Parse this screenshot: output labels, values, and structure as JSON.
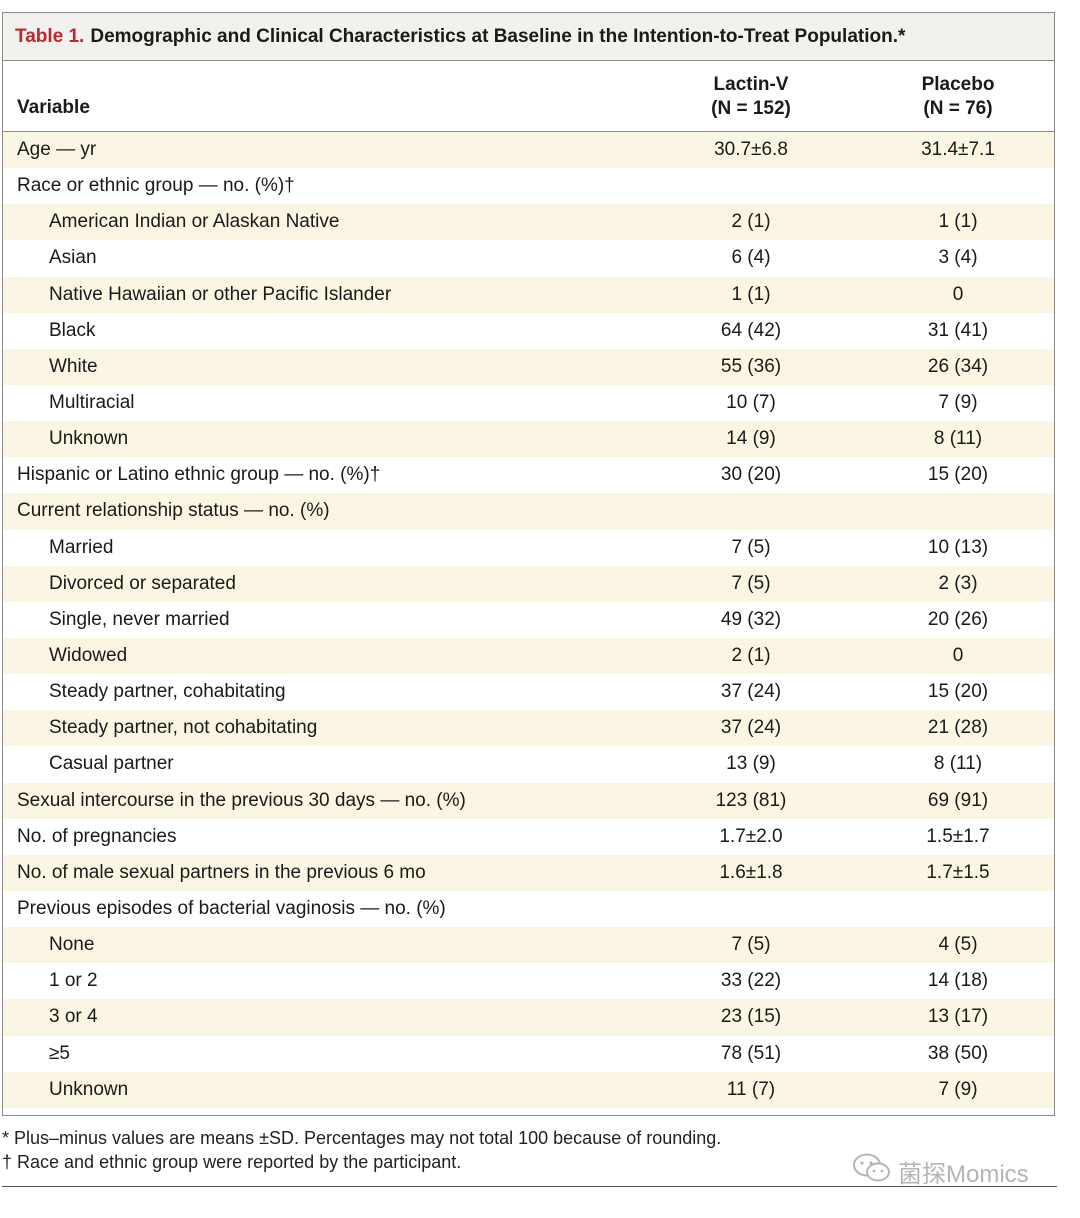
{
  "table": {
    "title_label": "Table 1.",
    "title_text": "Demographic and Clinical Characteristics at Baseline in the Intention-to-Treat Population.*",
    "header": {
      "variable": "Variable",
      "col1_line1": "Lactin-V",
      "col1_line2": "(N = 152)",
      "col2_line1": "Placebo",
      "col2_line2": "(N = 76)"
    },
    "rows": [
      {
        "label": "Age — yr",
        "v1": "30.7±6.8",
        "v2": "31.4±7.1"
      },
      {
        "label": "Race or ethnic group — no. (%)†",
        "v1": "",
        "v2": ""
      },
      {
        "label": "American Indian or Alaskan Native",
        "v1": "2 (1)",
        "v2": "1 (1)"
      },
      {
        "label": "Asian",
        "v1": "6 (4)",
        "v2": "3 (4)"
      },
      {
        "label": "Native Hawaiian or other Pacific Islander",
        "v1": "1 (1)",
        "v2": "0"
      },
      {
        "label": "Black",
        "v1": "64 (42)",
        "v2": "31 (41)"
      },
      {
        "label": "White",
        "v1": "55 (36)",
        "v2": "26 (34)"
      },
      {
        "label": "Multiracial",
        "v1": "10 (7)",
        "v2": "7 (9)"
      },
      {
        "label": "Unknown",
        "v1": "14 (9)",
        "v2": "8 (11)"
      },
      {
        "label": "Hispanic or Latino ethnic group — no. (%)†",
        "v1": "30 (20)",
        "v2": "15 (20)"
      },
      {
        "label": "Current relationship status — no. (%)",
        "v1": "",
        "v2": ""
      },
      {
        "label": "Married",
        "v1": "7 (5)",
        "v2": "10 (13)"
      },
      {
        "label": "Divorced or separated",
        "v1": "7 (5)",
        "v2": "2 (3)"
      },
      {
        "label": "Single, never married",
        "v1": "49 (32)",
        "v2": "20 (26)"
      },
      {
        "label": "Widowed",
        "v1": "2 (1)",
        "v2": "0"
      },
      {
        "label": "Steady partner, cohabitating",
        "v1": "37 (24)",
        "v2": "15 (20)"
      },
      {
        "label": "Steady partner, not cohabitating",
        "v1": "37 (24)",
        "v2": "21 (28)"
      },
      {
        "label": "Casual partner",
        "v1": "13 (9)",
        "v2": "8 (11)"
      },
      {
        "label": "Sexual intercourse in the previous 30 days — no. (%)",
        "v1": "123 (81)",
        "v2": "69 (91)"
      },
      {
        "label": "No. of pregnancies",
        "v1": "1.7±2.0",
        "v2": "1.5±1.7"
      },
      {
        "label": "No. of male sexual partners in the previous 6 mo",
        "v1": "1.6±1.8",
        "v2": "1.7±1.5"
      },
      {
        "label": "Previous episodes of bacterial vaginosis — no. (%)",
        "v1": "",
        "v2": ""
      },
      {
        "label": "None",
        "v1": "7 (5)",
        "v2": "4 (5)"
      },
      {
        "label": "1 or 2",
        "v1": "33 (22)",
        "v2": "14 (18)"
      },
      {
        "label": "3 or 4",
        "v1": "23 (15)",
        "v2": "13 (17)"
      },
      {
        "label": "≥5",
        "v1": "78 (51)",
        "v2": "38 (50)"
      },
      {
        "label": "Unknown",
        "v1": "11 (7)",
        "v2": "7 (9)"
      }
    ]
  },
  "footnotes": {
    "star": "* Plus–minus values are means ±SD. Percentages may not total 100 because of rounding.",
    "dagger": "† Race and ethnic group were reported by the participant."
  },
  "watermark": {
    "text": "菌探Momics",
    "icon": "wechat-icon"
  },
  "colors": {
    "title_accent": "#c0272d",
    "row_shade": "#fbf5e3",
    "header_bg": "#f3f1ee"
  }
}
